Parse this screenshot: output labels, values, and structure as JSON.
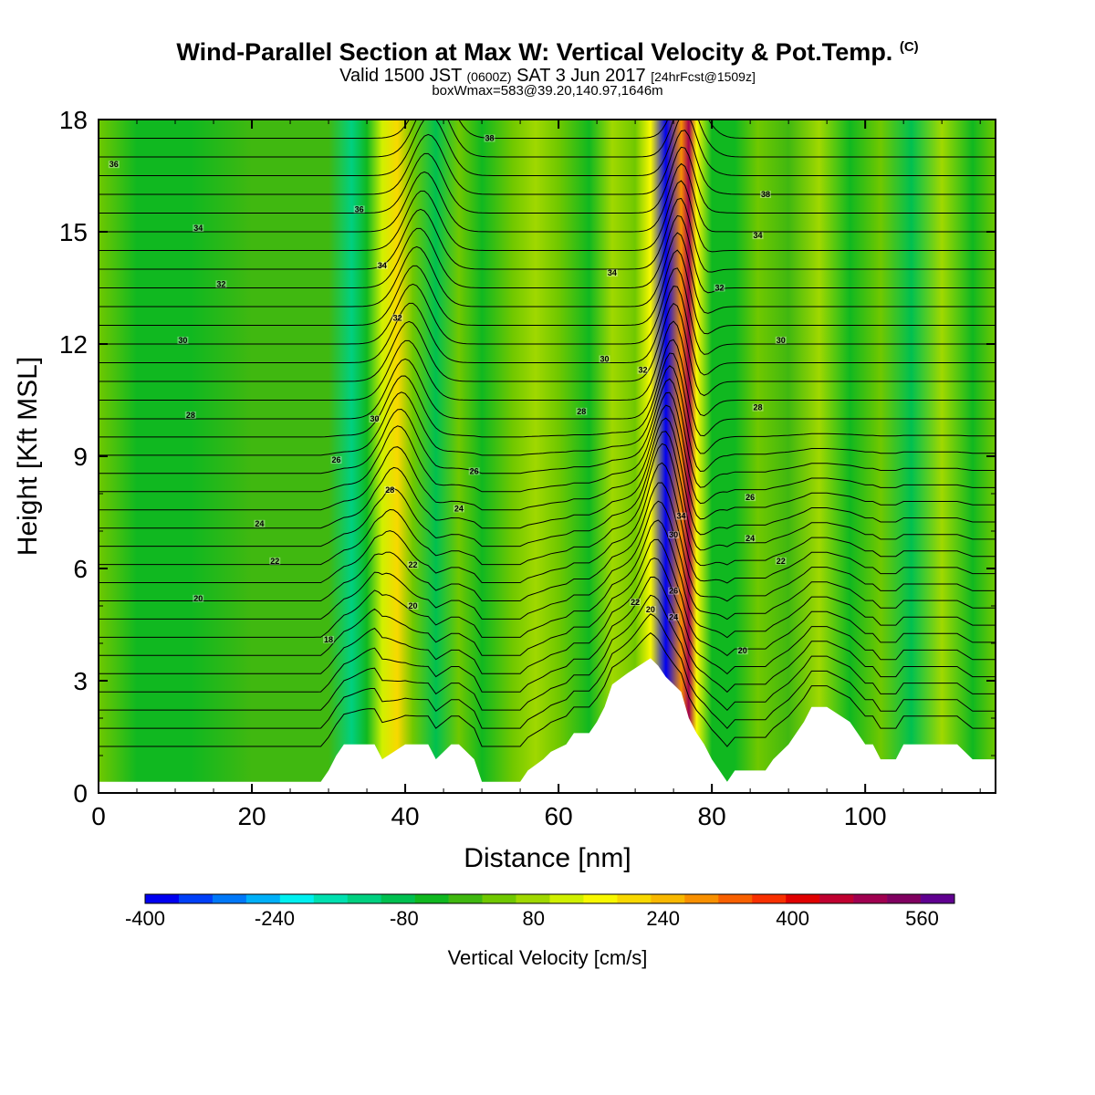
{
  "header": {
    "title": "Wind-Parallel Section at Max W: Vertical Velocity & Pot.Temp.",
    "title_mark": "(C)",
    "valid_a": "Valid 1500 JST",
    "valid_b": "(0600Z)",
    "valid_c": "SAT 3 Jun 2017",
    "valid_d": "[24hrFcst@1509z]",
    "box_line": "boxWmax=583@39.20,140.97,1646m"
  },
  "chart_data": {
    "type": "heatmap",
    "xlabel": "Distance [nm]",
    "ylabel": "Height [Kft MSL]",
    "xlim": [
      0,
      117
    ],
    "ylim": [
      0,
      18
    ],
    "x_ticks": [
      "0",
      "20",
      "40",
      "60",
      "80",
      "100"
    ],
    "y_ticks": [
      "0",
      "3",
      "6",
      "9",
      "12",
      "15",
      "18"
    ],
    "colorbar": {
      "label": "Vertical Velocity [cm/s]",
      "tick_labels": [
        "-400",
        "-240",
        "-80",
        "80",
        "240",
        "400",
        "560"
      ],
      "range": [
        -400,
        600
      ],
      "colors": [
        "#0000f0",
        "#0040f8",
        "#0078f8",
        "#00b0f8",
        "#00f0f0",
        "#00e0b0",
        "#00d080",
        "#00c050",
        "#10b820",
        "#40b810",
        "#70c800",
        "#a0d800",
        "#d0f000",
        "#f8f800",
        "#f8d800",
        "#f8b800",
        "#f89000",
        "#f86000",
        "#f83000",
        "#e00000",
        "#c00030",
        "#a00050",
        "#800060",
        "#600090"
      ]
    },
    "w_bands": [
      {
        "x": 0,
        "w": 20
      },
      {
        "x": 5,
        "w": -60
      },
      {
        "x": 12,
        "w": -40
      },
      {
        "x": 20,
        "w": 0
      },
      {
        "x": 30,
        "w": -20
      },
      {
        "x": 33,
        "w": -140
      },
      {
        "x": 35,
        "w": -60
      },
      {
        "x": 37,
        "w": 100
      },
      {
        "x": 39,
        "w": 200
      },
      {
        "x": 41,
        "w": 40
      },
      {
        "x": 44,
        "w": -100
      },
      {
        "x": 47,
        "w": 20
      },
      {
        "x": 50,
        "w": -60
      },
      {
        "x": 54,
        "w": 40
      },
      {
        "x": 57,
        "w": 80
      },
      {
        "x": 60,
        "w": 20
      },
      {
        "x": 64,
        "w": -60
      },
      {
        "x": 67,
        "w": 60
      },
      {
        "x": 70,
        "w": 40
      },
      {
        "x": 72,
        "w": 160
      },
      {
        "x": 74,
        "w": -380
      },
      {
        "x": 76,
        "w": 300
      },
      {
        "x": 77,
        "w": 500
      },
      {
        "x": 78,
        "w": 160
      },
      {
        "x": 80,
        "w": -40
      },
      {
        "x": 83,
        "w": -60
      },
      {
        "x": 86,
        "w": 40
      },
      {
        "x": 90,
        "w": -20
      },
      {
        "x": 94,
        "w": 60
      },
      {
        "x": 98,
        "w": -60
      },
      {
        "x": 102,
        "w": 40
      },
      {
        "x": 106,
        "w": -80
      },
      {
        "x": 110,
        "w": 60
      },
      {
        "x": 114,
        "w": -40
      },
      {
        "x": 117,
        "w": 20
      }
    ],
    "terrain": {
      "x": [
        0,
        29,
        30,
        31,
        32,
        36,
        37,
        40,
        43,
        44,
        46,
        47,
        49,
        50,
        55,
        56,
        58,
        59,
        61,
        62,
        64,
        65,
        66,
        67,
        69,
        72,
        73,
        74,
        76,
        77,
        78,
        79,
        80,
        81,
        82,
        83,
        87,
        88,
        90,
        91,
        92,
        93,
        95,
        98,
        99,
        100,
        101,
        102,
        104,
        105,
        112,
        113,
        114,
        117
      ],
      "h": [
        0.3,
        0.3,
        0.6,
        1.0,
        1.3,
        1.3,
        0.9,
        1.3,
        1.3,
        0.9,
        1.3,
        1.3,
        0.9,
        0.3,
        0.3,
        0.6,
        0.9,
        1.1,
        1.3,
        1.6,
        1.6,
        1.9,
        2.3,
        2.9,
        3.2,
        3.6,
        3.4,
        3.1,
        2.7,
        2.0,
        1.6,
        1.3,
        0.9,
        0.6,
        0.3,
        0.6,
        0.6,
        0.9,
        1.3,
        1.6,
        1.9,
        2.3,
        2.3,
        1.9,
        1.6,
        1.3,
        1.3,
        0.9,
        0.9,
        1.3,
        1.3,
        1.1,
        0.9,
        0.9
      ]
    },
    "theta_labels": [
      {
        "text": "36",
        "x": 2,
        "y": 16.8
      },
      {
        "text": "34",
        "x": 13,
        "y": 15.1
      },
      {
        "text": "32",
        "x": 16,
        "y": 13.6
      },
      {
        "text": "30",
        "x": 11,
        "y": 12.1
      },
      {
        "text": "28",
        "x": 12,
        "y": 10.1
      },
      {
        "text": "26",
        "x": 31,
        "y": 8.9
      },
      {
        "text": "24",
        "x": 21,
        "y": 7.2
      },
      {
        "text": "22",
        "x": 23,
        "y": 6.2
      },
      {
        "text": "20",
        "x": 13,
        "y": 5.2
      },
      {
        "text": "18",
        "x": 30,
        "y": 4.1
      },
      {
        "text": "36",
        "x": 34,
        "y": 15.6
      },
      {
        "text": "34",
        "x": 37,
        "y": 14.1
      },
      {
        "text": "32",
        "x": 39,
        "y": 12.7
      },
      {
        "text": "30",
        "x": 36,
        "y": 10.0
      },
      {
        "text": "28",
        "x": 38,
        "y": 8.1
      },
      {
        "text": "22",
        "x": 41,
        "y": 6.1
      },
      {
        "text": "20",
        "x": 41,
        "y": 5.0
      },
      {
        "text": "38",
        "x": 51,
        "y": 17.5
      },
      {
        "text": "34",
        "x": 67,
        "y": 13.9
      },
      {
        "text": "30",
        "x": 66,
        "y": 11.6
      },
      {
        "text": "28",
        "x": 63,
        "y": 10.2
      },
      {
        "text": "26",
        "x": 49,
        "y": 8.6
      },
      {
        "text": "24",
        "x": 47,
        "y": 7.6
      },
      {
        "text": "32",
        "x": 71,
        "y": 11.3
      },
      {
        "text": "22",
        "x": 70,
        "y": 5.1
      },
      {
        "text": "20",
        "x": 72,
        "y": 4.9
      },
      {
        "text": "34",
        "x": 76,
        "y": 7.4
      },
      {
        "text": "30",
        "x": 75,
        "y": 6.9
      },
      {
        "text": "26",
        "x": 75,
        "y": 5.4
      },
      {
        "text": "24",
        "x": 75,
        "y": 4.7
      },
      {
        "text": "38",
        "x": 87,
        "y": 16.0
      },
      {
        "text": "34",
        "x": 86,
        "y": 14.9
      },
      {
        "text": "32",
        "x": 81,
        "y": 13.5
      },
      {
        "text": "30",
        "x": 89,
        "y": 12.1
      },
      {
        "text": "28",
        "x": 86,
        "y": 10.3
      },
      {
        "text": "26",
        "x": 85,
        "y": 7.9
      },
      {
        "text": "24",
        "x": 85,
        "y": 6.8
      },
      {
        "text": "22",
        "x": 89,
        "y": 6.2
      },
      {
        "text": "20",
        "x": 84,
        "y": 3.8
      }
    ]
  }
}
